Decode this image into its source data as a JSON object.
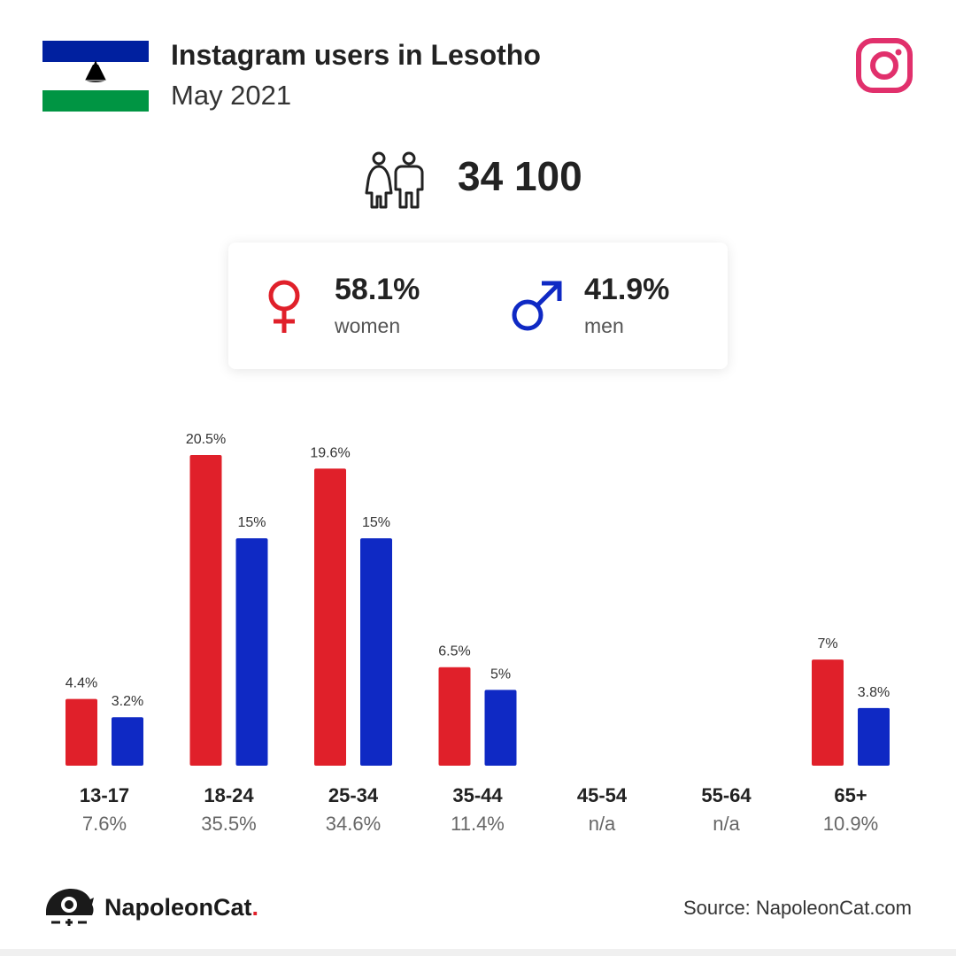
{
  "header": {
    "title": "Instagram users in Lesotho",
    "subtitle": "May 2021"
  },
  "total_users": "34 100",
  "gender": {
    "women": {
      "pct": "58.1%",
      "label": "women"
    },
    "men": {
      "pct": "41.9%",
      "label": "men"
    }
  },
  "colors": {
    "women": "#e0202a",
    "men": "#0f29c4",
    "instagram": "#e1306c",
    "flag_blue": "#00209f",
    "flag_green": "#009543"
  },
  "chart_data": {
    "type": "bar",
    "categories": [
      "13-17",
      "18-24",
      "25-34",
      "35-44",
      "45-54",
      "55-64",
      "65+"
    ],
    "category_totals": [
      "7.6%",
      "35.5%",
      "34.6%",
      "11.4%",
      "n/a",
      "n/a",
      "10.9%"
    ],
    "series": [
      {
        "name": "women",
        "values": [
          4.4,
          20.5,
          19.6,
          6.5,
          null,
          null,
          7
        ],
        "labels": [
          "4.4%",
          "20.5%",
          "19.6%",
          "6.5%",
          "",
          "",
          "7%"
        ]
      },
      {
        "name": "men",
        "values": [
          3.2,
          15,
          15,
          5,
          null,
          null,
          3.8
        ],
        "labels": [
          "3.2%",
          "15%",
          "15%",
          "5%",
          "",
          "",
          "3.8%"
        ]
      }
    ],
    "ylim": [
      0,
      20.5
    ],
    "grid": false
  },
  "footer": {
    "brand": "NapoleonCat",
    "brand_dot": ".",
    "source": "Source: NapoleonCat.com"
  }
}
